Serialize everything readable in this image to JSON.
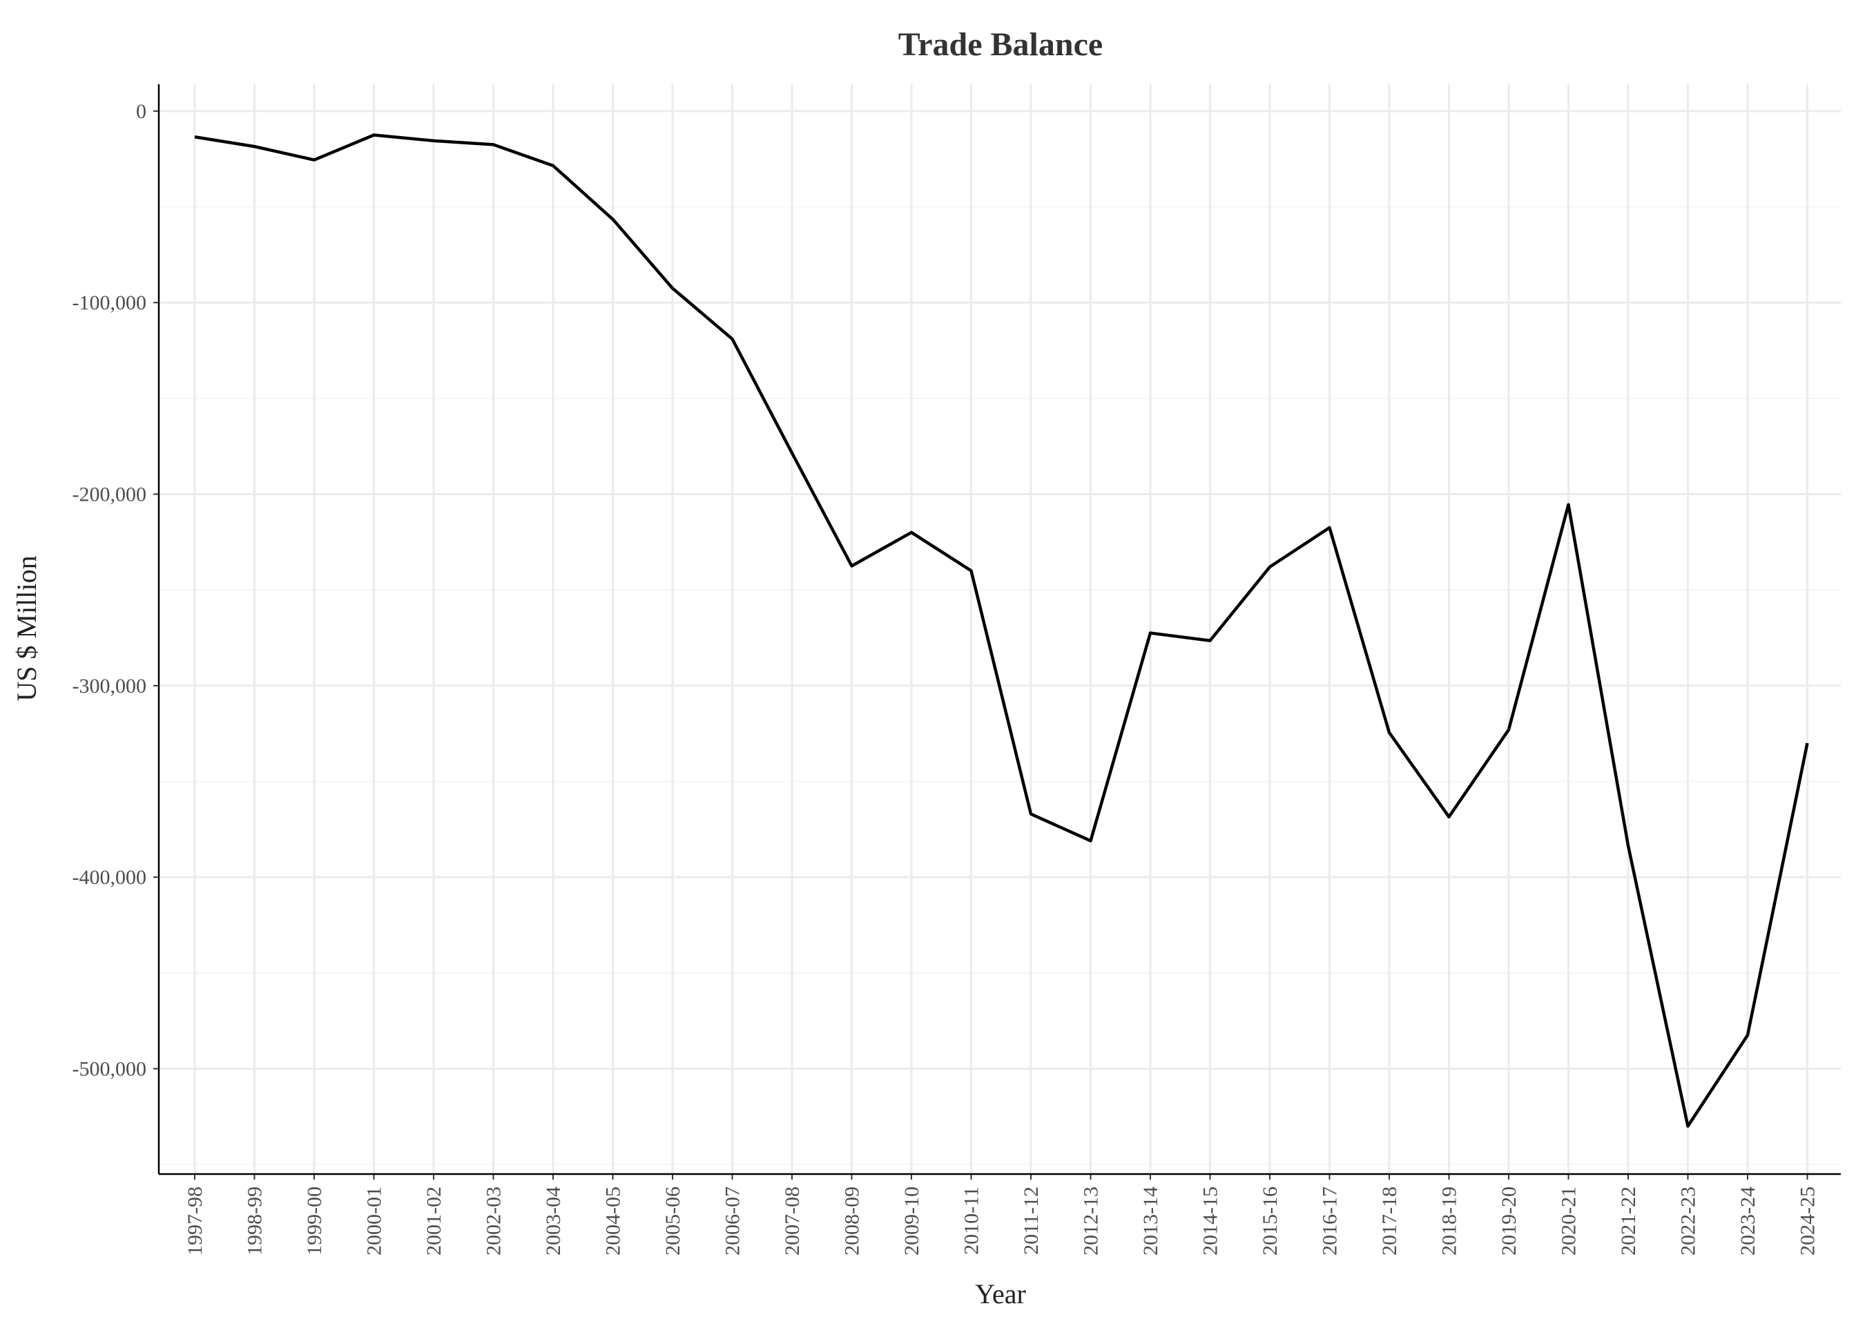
{
  "chart_data": {
    "type": "line",
    "title": "Trade Balance",
    "xlabel": "Year",
    "ylabel": "US $ Million",
    "categories": [
      "1997-98",
      "1998-99",
      "1999-00",
      "2000-01",
      "2001-02",
      "2002-03",
      "2003-04",
      "2004-05",
      "2005-06",
      "2006-07",
      "2007-08",
      "2008-09",
      "2009-10",
      "2010-11",
      "2011-12",
      "2012-13",
      "2013-14",
      "2014-15",
      "2015-16",
      "2016-17",
      "2017-18",
      "2018-19",
      "2019-20",
      "2020-21",
      "2021-22",
      "2022-23",
      "2023-24",
      "2024-25"
    ],
    "series": [
      {
        "values": [
          -13500,
          -18500,
          -25500,
          -12500,
          -15500,
          -17500,
          -28500,
          -56500,
          -92500,
          -119000,
          -178500,
          -237500,
          -220000,
          -240000,
          -367000,
          -381000,
          -272500,
          -276500,
          -238000,
          -217500,
          -324500,
          -368500,
          -323000,
          -205500,
          -383500,
          -530000,
          -482500,
          -330000
        ]
      }
    ],
    "yticks": [
      0,
      -100000,
      -200000,
      -300000,
      -400000,
      -500000
    ],
    "ytick_labels": [
      "0",
      "-100,000",
      "-200,000",
      "-300,000",
      "-400,000",
      "-500,000"
    ],
    "ylim": [
      -555000,
      14000
    ],
    "grid": true,
    "colors": {
      "line": "#000000",
      "grid_major": "#ebebeb",
      "grid_minor": "#f2f2f2"
    }
  }
}
